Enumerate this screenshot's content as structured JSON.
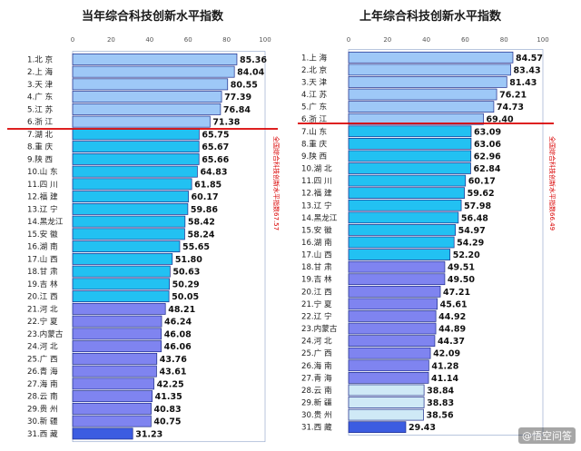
{
  "colors": {
    "light_blue": "#9ec8f7",
    "cyan": "#22c1f2",
    "purple": "#7f84f0",
    "pale": "#cfe9f6",
    "dark_blue": "#3c5ce1",
    "red_line": "#d90000",
    "axis_text": "#555555",
    "bar_value_text": "#111111"
  },
  "chart_data": [
    {
      "type": "bar",
      "orientation": "horizontal",
      "title": "当年综合科技创新水平指数",
      "xlim": [
        0,
        100
      ],
      "ticks": [
        "0",
        "20",
        "40",
        "60",
        "80",
        "100"
      ],
      "grid": false,
      "threshold": {
        "value": 67.57,
        "after_rank": 6,
        "annotation": "全国综合科技创新水平指数67.57"
      },
      "categories": [
        "1.北 京",
        "2.上 海",
        "3.天 津",
        "4.广 东",
        "5.江 苏",
        "6.浙 江",
        "7.湖 北",
        "8.重 庆",
        "9.陕 西",
        "10.山 东",
        "11.四 川",
        "12.福 建",
        "13.辽 宁",
        "14.黑龙江",
        "15.安 徽",
        "16.湖 南",
        "17.山 西",
        "18.甘 肃",
        "19.吉 林",
        "20.江 西",
        "21.河 北",
        "22.宁 夏",
        "23.内蒙古",
        "24.河 北",
        "25.广 西",
        "26.青 海",
        "27.海 南",
        "28.云 南",
        "29.贵 州",
        "30.新 疆",
        "31.西 藏"
      ],
      "values": [
        85.36,
        84.04,
        80.55,
        77.39,
        76.84,
        71.38,
        65.75,
        65.67,
        65.66,
        64.83,
        61.85,
        60.17,
        59.86,
        58.42,
        58.24,
        55.65,
        51.8,
        50.63,
        50.29,
        50.05,
        48.21,
        46.24,
        46.08,
        46.06,
        43.76,
        43.61,
        42.25,
        41.35,
        40.83,
        40.75,
        31.23
      ],
      "value_labels": [
        "85.36",
        "84.04",
        "80.55",
        "77.39",
        "76.84",
        "71.38",
        "65.75",
        "65.67",
        "65.66",
        "64.83",
        "61.85",
        "60.17",
        "59.86",
        "58.42",
        "58.24",
        "55.65",
        "51.80",
        "50.63",
        "50.29",
        "50.05",
        "48.21",
        "46.24",
        "46.08",
        "46.06",
        "43.76",
        "43.61",
        "42.25",
        "41.35",
        "40.83",
        "40.75",
        "31.23"
      ],
      "color_groups": [
        "light_blue",
        "light_blue",
        "light_blue",
        "light_blue",
        "light_blue",
        "light_blue",
        "cyan",
        "cyan",
        "cyan",
        "cyan",
        "cyan",
        "cyan",
        "cyan",
        "cyan",
        "cyan",
        "cyan",
        "cyan",
        "cyan",
        "cyan",
        "cyan",
        "purple",
        "purple",
        "purple",
        "purple",
        "purple",
        "purple",
        "purple",
        "purple",
        "purple",
        "purple",
        "dark_blue"
      ]
    },
    {
      "type": "bar",
      "orientation": "horizontal",
      "title": "上年综合科技创新水平指数",
      "xlim": [
        0,
        100
      ],
      "ticks": [
        "0",
        "20",
        "40",
        "60",
        "80",
        "100"
      ],
      "grid": false,
      "threshold": {
        "value": 66.49,
        "after_rank": 6,
        "annotation": "全国综合科技创新水平指数66.49"
      },
      "categories": [
        "1.上 海",
        "2.北 京",
        "3.天 津",
        "4.江 苏",
        "5.广 东",
        "6.浙 江",
        "7.山 东",
        "8.重 庆",
        "9.陕 西",
        "10.湖 北",
        "11.四 川",
        "12.福 建",
        "13.辽 宁",
        "14.黑龙江",
        "15.安 徽",
        "16.湖 南",
        "17.山 西",
        "18.甘 肃",
        "19.吉 林",
        "20.江 西",
        "21.宁 夏",
        "22.辽 宁",
        "23.内蒙古",
        "24.河 北",
        "25.广 西",
        "26.海 南",
        "27.青 海",
        "28.云 南",
        "29.新 疆",
        "30.贵 州",
        "31.西 藏"
      ],
      "values": [
        84.57,
        83.43,
        81.43,
        76.21,
        74.73,
        69.4,
        63.09,
        63.06,
        62.96,
        62.84,
        60.17,
        59.62,
        57.98,
        56.48,
        54.97,
        54.29,
        52.2,
        49.51,
        49.5,
        47.21,
        45.61,
        44.92,
        44.89,
        44.37,
        42.09,
        41.28,
        41.14,
        38.84,
        38.83,
        38.56,
        29.43
      ],
      "value_labels": [
        "84.57",
        "83.43",
        "81.43",
        "76.21",
        "74.73",
        "69.40",
        "63.09",
        "63.06",
        "62.96",
        "62.84",
        "60.17",
        "59.62",
        "57.98",
        "56.48",
        "54.97",
        "54.29",
        "52.20",
        "49.51",
        "49.50",
        "47.21",
        "45.61",
        "44.92",
        "44.89",
        "44.37",
        "42.09",
        "41.28",
        "41.14",
        "38.84",
        "38.83",
        "38.56",
        "29.43"
      ],
      "color_groups": [
        "light_blue",
        "light_blue",
        "light_blue",
        "light_blue",
        "light_blue",
        "light_blue",
        "cyan",
        "cyan",
        "cyan",
        "cyan",
        "cyan",
        "cyan",
        "cyan",
        "cyan",
        "cyan",
        "cyan",
        "cyan",
        "purple",
        "purple",
        "purple",
        "purple",
        "purple",
        "purple",
        "purple",
        "purple",
        "purple",
        "purple",
        "pale",
        "pale",
        "pale",
        "dark_blue"
      ]
    }
  ],
  "watermark": "@悟空问答"
}
